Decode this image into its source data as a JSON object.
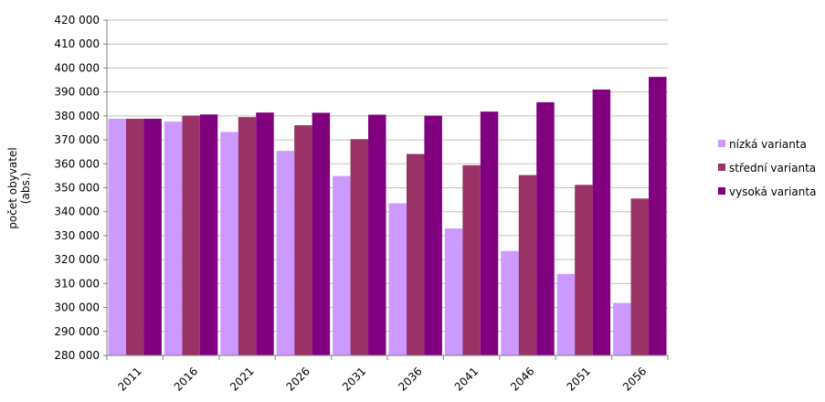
{
  "chart_data": {
    "type": "bar",
    "title": "",
    "xlabel": "",
    "ylabel": [
      "počet obyvatel",
      "(abs.)"
    ],
    "ylim": [
      280000,
      420000
    ],
    "ytick_step": 10000,
    "ytick_labels": [
      "280 000",
      "290 000",
      "300 000",
      "310 000",
      "320 000",
      "330 000",
      "340 000",
      "350 000",
      "360 000",
      "370 000",
      "380 000",
      "390 000",
      "400 000",
      "410 000",
      "420 000"
    ],
    "categories": [
      "2011",
      "2016",
      "2021",
      "2026",
      "2031",
      "2036",
      "2041",
      "2046",
      "2051",
      "2056"
    ],
    "series": [
      {
        "name": "nízká varianta",
        "color": "#cc99ff",
        "values": [
          378800,
          377600,
          373300,
          365400,
          354900,
          343500,
          333000,
          323600,
          314000,
          301900
        ]
      },
      {
        "name": "střední varianta",
        "color": "#993366",
        "values": [
          378800,
          380100,
          379500,
          376100,
          370300,
          364100,
          359400,
          355300,
          351200,
          345500
        ]
      },
      {
        "name": "vysoká varianta",
        "color": "#800080",
        "values": [
          378800,
          380600,
          381400,
          381300,
          380500,
          380100,
          381800,
          385700,
          391000,
          396300
        ]
      }
    ],
    "grid": true,
    "legend_position": "right"
  }
}
